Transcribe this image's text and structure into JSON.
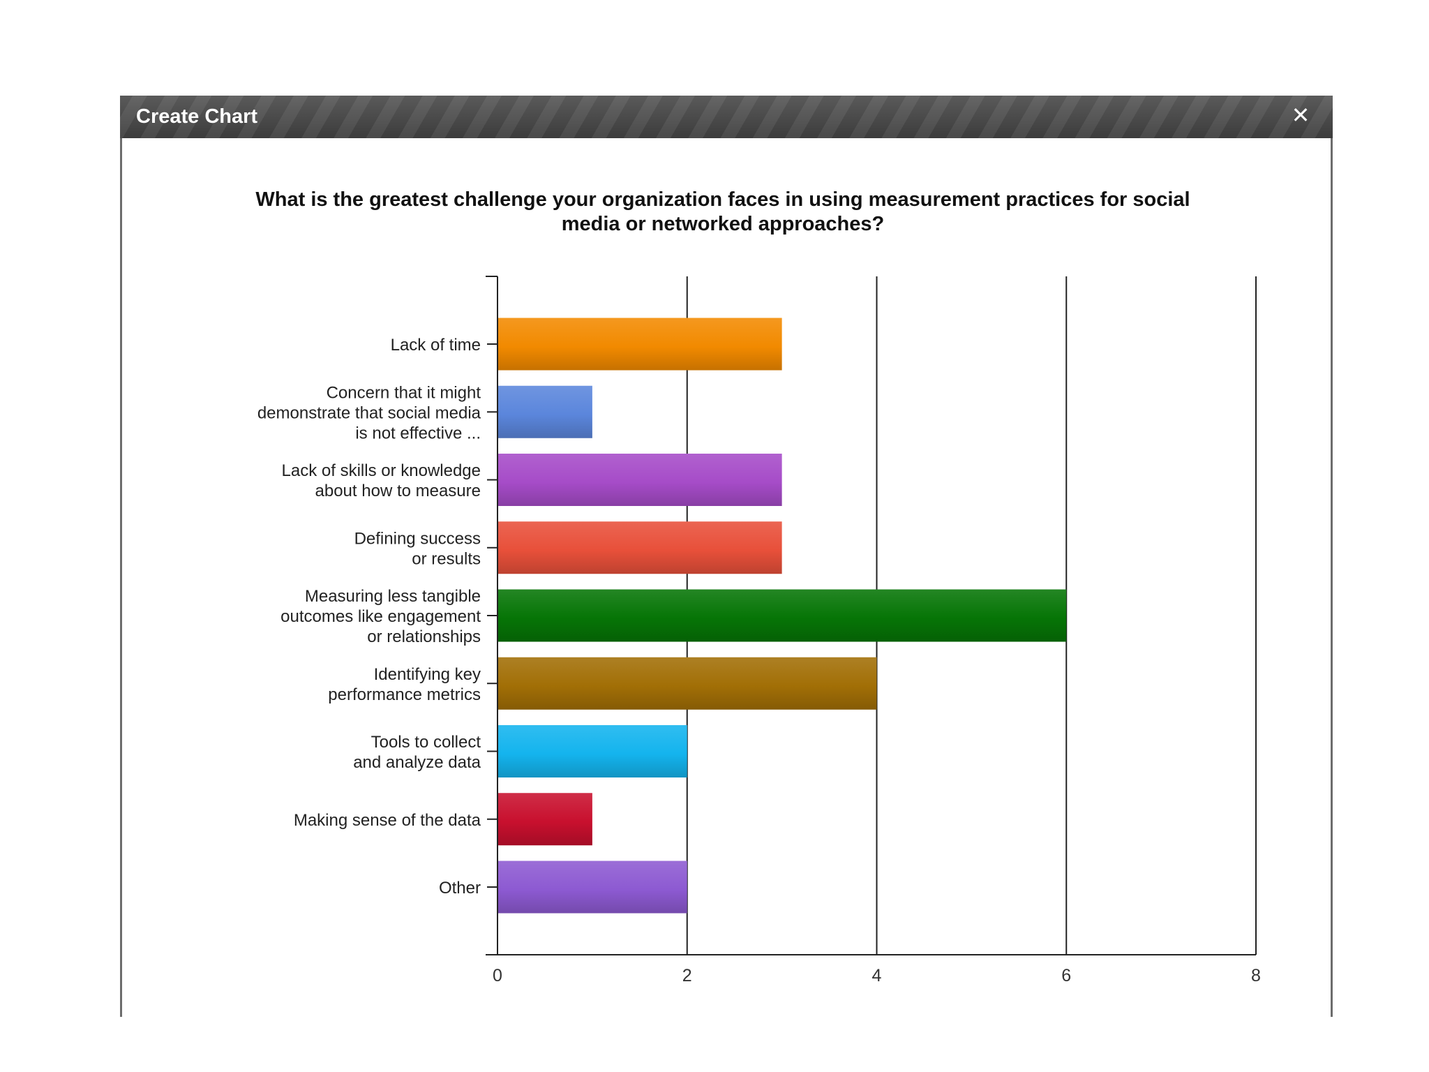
{
  "dialog": {
    "title": "Create Chart",
    "close_icon": "close-icon",
    "close_glyph": "✕"
  },
  "chart_data": {
    "type": "bar",
    "orientation": "horizontal",
    "title": "What is the greatest challenge your organization faces in using measurement practices for social media or networked approaches?",
    "title_lines": [
      "What is the greatest challenge your organization faces in using measurement practices for social",
      "media or networked approaches?"
    ],
    "categories": [
      "Lack of time",
      "Concern that it might demonstrate that social media is not effective ...",
      "Lack of skills or knowledge about how to measure",
      "Defining success or results",
      "Measuring less tangible outcomes like engagement or relationships",
      "Identifying key performance metrics",
      "Tools to collect and analyze data",
      "Making sense of the data",
      "Other"
    ],
    "category_lines": [
      [
        "Lack of time"
      ],
      [
        "Concern that it might",
        "demonstrate that social media",
        "is not effective ..."
      ],
      [
        "Lack of skills or knowledge",
        "about how to measure"
      ],
      [
        "Defining success",
        "or results"
      ],
      [
        "Measuring less tangible",
        "outcomes like engagement",
        "or relationships"
      ],
      [
        "Identifying key",
        "performance metrics"
      ],
      [
        "Tools to collect",
        "and analyze data"
      ],
      [
        "Making sense of the data"
      ],
      [
        "Other"
      ]
    ],
    "values": [
      3,
      1,
      3,
      3,
      6,
      4,
      2,
      1,
      2
    ],
    "colors": [
      "#f28a00",
      "#5b86dc",
      "#a64cc8",
      "#e8503a",
      "#067506",
      "#a26f06",
      "#14b4ee",
      "#c8102e",
      "#8d5ad2"
    ],
    "xlim": [
      0,
      8
    ],
    "xticks": [
      0,
      2,
      4,
      6,
      8
    ],
    "xlabel": "",
    "ylabel": "",
    "grid": "vertical",
    "legend": "none"
  }
}
